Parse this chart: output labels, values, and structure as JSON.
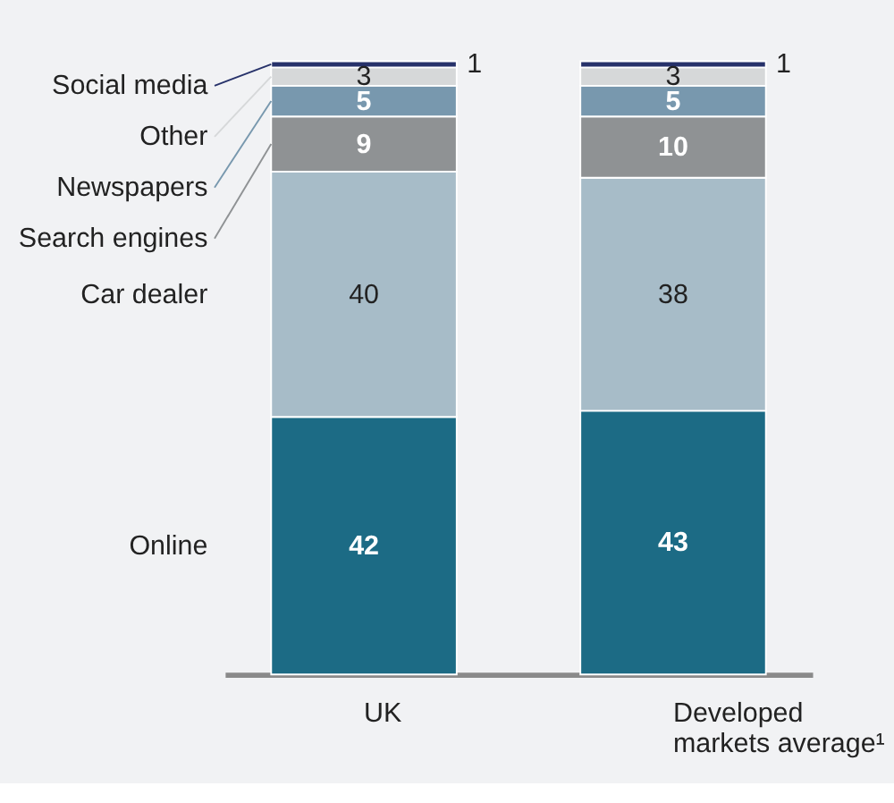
{
  "chart_data": {
    "type": "bar",
    "stacked": true,
    "data_labels": true,
    "categories": [
      "UK",
      "Developed markets average¹"
    ],
    "series": [
      {
        "name": "Online",
        "color": "#1c6b85",
        "values": [
          42,
          43
        ]
      },
      {
        "name": "Car dealer",
        "color": "#a7bcc8",
        "values": [
          40,
          38
        ]
      },
      {
        "name": "Search engines",
        "color": "#8f9294",
        "values": [
          9,
          10
        ]
      },
      {
        "name": "Newspapers",
        "color": "#7898ae",
        "values": [
          5,
          5
        ]
      },
      {
        "name": "Other",
        "color": "#d6d8d9",
        "values": [
          3,
          3
        ]
      },
      {
        "name": "Social media",
        "color": "#27326a",
        "values": [
          1,
          1
        ]
      }
    ]
  }
}
